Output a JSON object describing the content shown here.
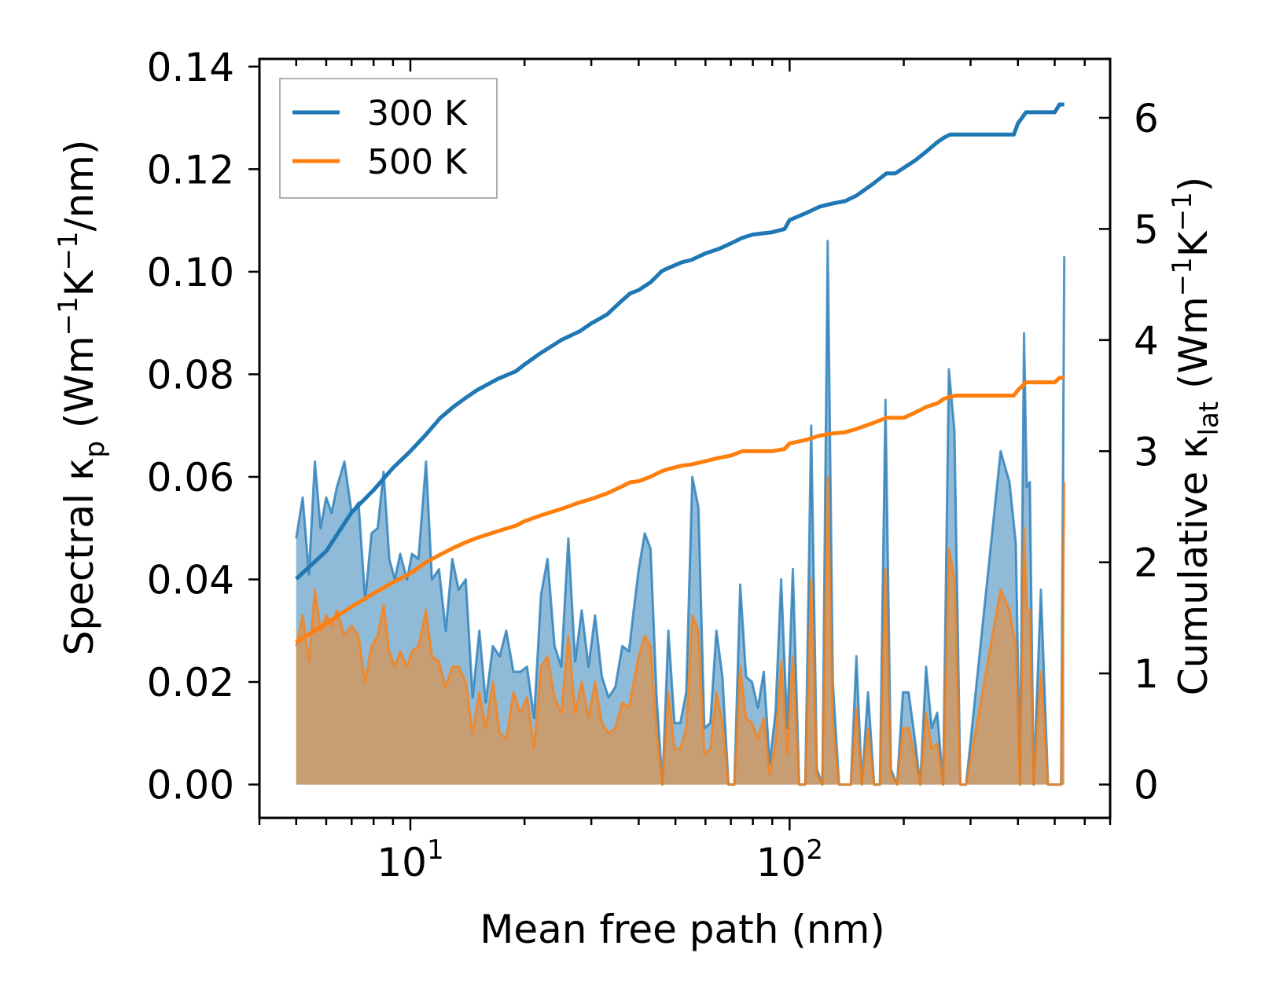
{
  "chart_data": {
    "type": "area",
    "xscale": "log",
    "xlabel": "Mean free path (nm)",
    "xlim": [
      4.0,
      700
    ],
    "xticks": [
      {
        "value": 10,
        "base": "10",
        "exp": "1"
      },
      {
        "value": 100,
        "base": "10",
        "exp": "2"
      }
    ],
    "ylabel_left": {
      "main": "Spectral κ",
      "sub": "p",
      "unit_pre": " (Wm",
      "unit_exp1": "−1",
      "unit_mid": "K",
      "unit_exp2": "−1",
      "unit_post": "/nm)"
    },
    "ylim_left": [
      -0.0065,
      0.1415
    ],
    "yticks_left": [
      "0.00",
      "0.02",
      "0.04",
      "0.06",
      "0.08",
      "0.10",
      "0.12",
      "0.14"
    ],
    "ylabel_right": {
      "main": "Cumulative κ",
      "sub": "lat",
      "unit_pre": " (Wm",
      "unit_exp1": "−1",
      "unit_mid": "K",
      "unit_exp2": "−1",
      "unit_post": ")"
    },
    "ylim_right": [
      -0.3,
      6.53
    ],
    "yticks_right": [
      "0",
      "1",
      "2",
      "3",
      "4",
      "5",
      "6"
    ],
    "legend": {
      "position": "top-left",
      "entries": [
        {
          "label": "300 K",
          "color": "#1f77b4"
        },
        {
          "label": "500 K",
          "color": "#ff7f0e"
        }
      ]
    },
    "spectral": [
      {
        "name": "300 K",
        "color": "#1f77b4",
        "x": [
          5.0,
          5.2,
          5.4,
          5.6,
          5.8,
          6.0,
          6.2,
          6.4,
          6.7,
          7.0,
          7.3,
          7.6,
          7.9,
          8.2,
          8.5,
          8.8,
          9.1,
          9.4,
          9.8,
          10.1,
          10.5,
          11.0,
          11.4,
          11.9,
          12.4,
          12.9,
          13.4,
          14.0,
          14.6,
          15.2,
          15.8,
          16.5,
          17.2,
          17.9,
          18.7,
          19.5,
          20.3,
          21.2,
          22.1,
          23.0,
          24.0,
          25.0,
          26.1,
          27.2,
          28.3,
          29.5,
          30.7,
          32.0,
          33.3,
          34.7,
          36.2,
          37.7,
          38.8,
          40.0,
          41.5,
          43.0,
          44.6,
          46.2,
          47.9,
          49.7,
          51.5,
          53.4,
          55.4,
          57.5,
          59.6,
          61.8,
          64.1,
          66.5,
          69.0,
          71.5,
          74.1,
          76.8,
          79.6,
          82.5,
          85.5,
          88.6,
          91.8,
          95.0,
          98.5,
          102.0,
          106.0,
          110.0,
          114.0,
          118.0,
          122.0,
          126.0,
          130.0,
          135.0,
          140.0,
          145.0,
          150.0,
          155.0,
          161.0,
          167.0,
          173.0,
          179.0,
          185.0,
          192.0,
          199.0,
          206.0,
          213.0,
          221.0,
          229.0,
          237.0,
          245.0,
          254.0,
          263.0,
          272.0,
          282.0,
          292.0,
          360.0,
          380.0,
          395.0,
          405.0,
          415.0,
          422.0,
          430.0,
          440.0,
          460.0,
          480.0,
          500.0,
          520.0,
          530.0
        ],
        "y": [
          0.048,
          0.056,
          0.041,
          0.063,
          0.05,
          0.056,
          0.053,
          0.058,
          0.063,
          0.053,
          0.055,
          0.036,
          0.049,
          0.05,
          0.061,
          0.044,
          0.04,
          0.045,
          0.04,
          0.045,
          0.044,
          0.063,
          0.04,
          0.042,
          0.03,
          0.044,
          0.038,
          0.04,
          0.017,
          0.03,
          0.016,
          0.027,
          0.025,
          0.03,
          0.022,
          0.022,
          0.023,
          0.013,
          0.037,
          0.044,
          0.027,
          0.023,
          0.048,
          0.024,
          0.034,
          0.023,
          0.033,
          0.021,
          0.017,
          0.019,
          0.027,
          0.026,
          0.034,
          0.042,
          0.049,
          0.046,
          0.017,
          0.0,
          0.03,
          0.012,
          0.012,
          0.018,
          0.06,
          0.054,
          0.011,
          0.012,
          0.03,
          0.021,
          0.0,
          0.0,
          0.039,
          0.021,
          0.02,
          0.015,
          0.022,
          0.004,
          0.014,
          0.04,
          0.011,
          0.042,
          0.0,
          0.0,
          0.07,
          0.003,
          0.0,
          0.106,
          0.02,
          0.0,
          0.0,
          0.0,
          0.025,
          0.0,
          0.018,
          0.0,
          0.0,
          0.075,
          0.003,
          0.0,
          0.018,
          0.018,
          0.01,
          0.0,
          0.023,
          0.011,
          0.014,
          0.0,
          0.081,
          0.069,
          0.0,
          0.0,
          0.065,
          0.059,
          0.047,
          0.0,
          0.088,
          0.058,
          0.059,
          0.0,
          0.038,
          0.0,
          0.0,
          0.0,
          0.103
        ],
        "spikes_note": "tall spikes near 390-440 nm"
      },
      {
        "name": "500 K",
        "color": "#ff7f0e",
        "x": [
          5.0,
          5.2,
          5.4,
          5.6,
          5.8,
          6.0,
          6.2,
          6.4,
          6.7,
          7.0,
          7.3,
          7.6,
          7.9,
          8.2,
          8.5,
          8.8,
          9.1,
          9.4,
          9.8,
          10.1,
          10.5,
          11.0,
          11.4,
          11.9,
          12.4,
          12.9,
          13.4,
          14.0,
          14.6,
          15.2,
          15.8,
          16.5,
          17.2,
          17.9,
          18.7,
          19.5,
          20.3,
          21.2,
          22.1,
          23.0,
          24.0,
          25.0,
          26.1,
          27.2,
          28.3,
          29.5,
          30.7,
          32.0,
          33.3,
          34.7,
          36.2,
          37.7,
          38.8,
          40.0,
          41.5,
          43.0,
          44.6,
          46.2,
          47.9,
          49.7,
          51.5,
          53.4,
          55.4,
          57.5,
          59.6,
          61.8,
          64.1,
          66.5,
          69.0,
          71.5,
          74.1,
          76.8,
          79.6,
          82.5,
          85.5,
          88.6,
          91.8,
          95.0,
          98.5,
          102.0,
          106.0,
          110.0,
          114.0,
          118.0,
          122.0,
          126.0,
          130.0,
          135.0,
          140.0,
          145.0,
          150.0,
          155.0,
          161.0,
          167.0,
          173.0,
          179.0,
          185.0,
          192.0,
          199.0,
          206.0,
          213.0,
          221.0,
          229.0,
          237.0,
          245.0,
          254.0,
          263.0,
          272.0,
          282.0,
          292.0,
          360.0,
          380.0,
          395.0,
          405.0,
          415.0,
          422.0,
          430.0,
          440.0,
          460.0,
          480.0,
          500.0,
          520.0,
          530.0
        ],
        "y": [
          0.027,
          0.033,
          0.024,
          0.038,
          0.03,
          0.033,
          0.031,
          0.034,
          0.029,
          0.031,
          0.029,
          0.02,
          0.027,
          0.029,
          0.035,
          0.026,
          0.023,
          0.026,
          0.023,
          0.026,
          0.027,
          0.034,
          0.025,
          0.024,
          0.019,
          0.023,
          0.023,
          0.02,
          0.01,
          0.018,
          0.011,
          0.02,
          0.01,
          0.009,
          0.018,
          0.014,
          0.017,
          0.007,
          0.023,
          0.025,
          0.017,
          0.014,
          0.029,
          0.014,
          0.02,
          0.013,
          0.02,
          0.012,
          0.01,
          0.011,
          0.016,
          0.015,
          0.02,
          0.025,
          0.029,
          0.027,
          0.01,
          0.0,
          0.018,
          0.007,
          0.007,
          0.011,
          0.033,
          0.03,
          0.006,
          0.007,
          0.018,
          0.012,
          0.0,
          0.0,
          0.023,
          0.013,
          0.012,
          0.009,
          0.013,
          0.002,
          0.008,
          0.024,
          0.006,
          0.025,
          0.0,
          0.0,
          0.04,
          0.002,
          0.0,
          0.06,
          0.012,
          0.0,
          0.0,
          0.0,
          0.015,
          0.0,
          0.011,
          0.0,
          0.0,
          0.042,
          0.002,
          0.0,
          0.011,
          0.011,
          0.006,
          0.0,
          0.014,
          0.007,
          0.008,
          0.0,
          0.046,
          0.04,
          0.0,
          0.0,
          0.038,
          0.034,
          0.027,
          0.0,
          0.05,
          0.034,
          0.034,
          0.0,
          0.022,
          0.0,
          0.0,
          0.0,
          0.059
        ]
      }
    ],
    "cumulative": [
      {
        "name": "300 K",
        "color": "#1f77b4",
        "x": [
          5.0,
          6.0,
          7.0,
          8.0,
          9.0,
          10.0,
          11.0,
          12.0,
          13.0,
          14.0,
          15.0,
          17.0,
          19.0,
          20.0,
          22.0,
          25.0,
          28.0,
          30.0,
          33.0,
          36.0,
          38.0,
          40.0,
          43.0,
          46.0,
          48.0,
          52.0,
          55.0,
          60.0,
          65.0,
          70.0,
          75.0,
          80.0,
          90.0,
          97.0,
          100.0,
          110.0,
          120.0,
          130.0,
          140.0,
          150.0,
          165.0,
          180.0,
          190.0,
          200.0,
          215.0,
          230.0,
          245.0,
          255.0,
          265.0,
          275.0,
          300.0,
          350.0,
          390.0,
          400.0,
          420.0,
          440.0,
          460.0,
          500.0,
          515.0,
          530.0
        ],
        "y": [
          1.85,
          2.1,
          2.45,
          2.65,
          2.85,
          3.0,
          3.15,
          3.3,
          3.4,
          3.48,
          3.55,
          3.65,
          3.72,
          3.78,
          3.88,
          4.0,
          4.08,
          4.15,
          4.23,
          4.35,
          4.42,
          4.45,
          4.52,
          4.62,
          4.65,
          4.7,
          4.72,
          4.78,
          4.82,
          4.87,
          4.92,
          4.95,
          4.97,
          5.0,
          5.08,
          5.14,
          5.2,
          5.23,
          5.25,
          5.3,
          5.4,
          5.5,
          5.5,
          5.55,
          5.62,
          5.7,
          5.78,
          5.82,
          5.85,
          5.85,
          5.85,
          5.85,
          5.85,
          5.95,
          6.05,
          6.05,
          6.05,
          6.05,
          6.12,
          6.12
        ]
      },
      {
        "name": "500 K",
        "color": "#ff7f0e",
        "x": [
          5.0,
          6.0,
          7.0,
          8.0,
          9.0,
          10.0,
          11.0,
          12.0,
          13.0,
          14.0,
          15.0,
          17.0,
          19.0,
          20.0,
          22.0,
          25.0,
          28.0,
          30.0,
          33.0,
          36.0,
          38.0,
          40.0,
          43.0,
          46.0,
          48.0,
          52.0,
          55.0,
          60.0,
          65.0,
          70.0,
          75.0,
          80.0,
          90.0,
          97.0,
          100.0,
          110.0,
          120.0,
          130.0,
          140.0,
          150.0,
          165.0,
          180.0,
          190.0,
          200.0,
          215.0,
          230.0,
          245.0,
          255.0,
          265.0,
          275.0,
          300.0,
          350.0,
          390.0,
          400.0,
          420.0,
          440.0,
          460.0,
          500.0,
          515.0,
          530.0
        ],
        "y": [
          1.28,
          1.45,
          1.6,
          1.72,
          1.82,
          1.9,
          2.0,
          2.07,
          2.13,
          2.18,
          2.22,
          2.28,
          2.33,
          2.37,
          2.42,
          2.48,
          2.54,
          2.57,
          2.62,
          2.68,
          2.72,
          2.73,
          2.77,
          2.82,
          2.84,
          2.87,
          2.88,
          2.91,
          2.94,
          2.96,
          3.0,
          3.0,
          3.0,
          3.02,
          3.07,
          3.1,
          3.14,
          3.16,
          3.17,
          3.2,
          3.25,
          3.3,
          3.3,
          3.3,
          3.35,
          3.4,
          3.43,
          3.47,
          3.49,
          3.5,
          3.5,
          3.5,
          3.5,
          3.55,
          3.62,
          3.62,
          3.62,
          3.62,
          3.66,
          3.66
        ]
      }
    ]
  }
}
